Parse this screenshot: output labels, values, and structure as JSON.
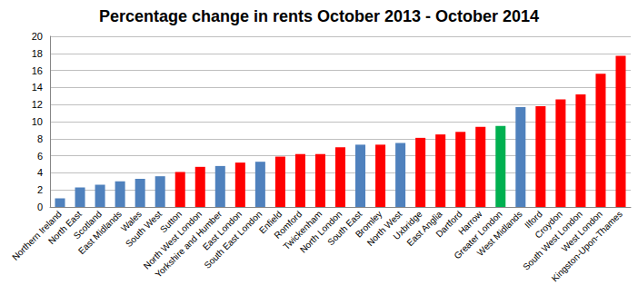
{
  "chart_data": {
    "type": "bar",
    "title": "Percentage change in rents October 2013 - October 2014",
    "categories": [
      "Northern Ireland",
      "North East",
      "Scotland",
      "East Midlands",
      "Wales",
      "South West",
      "Sutton",
      "North West London",
      "Yorkshire and Humber",
      "East London",
      "South East London",
      "Enfield",
      "Romford",
      "Twickenham",
      "North London",
      "South East",
      "Bromley",
      "North West",
      "Uxbridge",
      "East Anglia",
      "Dartford",
      "Harrow",
      "Greater London",
      "West Midlands",
      "Ilford",
      "Croydon",
      "South West London",
      "West London",
      "Kingston-Upon-Thames"
    ],
    "values": [
      1.0,
      2.3,
      2.6,
      3.0,
      3.3,
      3.6,
      4.1,
      4.7,
      4.8,
      5.2,
      5.3,
      5.9,
      6.2,
      6.2,
      7.0,
      7.3,
      7.3,
      7.5,
      8.1,
      8.5,
      8.8,
      9.4,
      9.5,
      11.7,
      11.8,
      12.6,
      13.2,
      15.6,
      17.7
    ],
    "colors": [
      "#4f81bd",
      "#4f81bd",
      "#4f81bd",
      "#4f81bd",
      "#4f81bd",
      "#4f81bd",
      "#ff0000",
      "#ff0000",
      "#4f81bd",
      "#ff0000",
      "#4f81bd",
      "#ff0000",
      "#ff0000",
      "#ff0000",
      "#ff0000",
      "#4f81bd",
      "#ff0000",
      "#4f81bd",
      "#ff0000",
      "#ff0000",
      "#ff0000",
      "#ff0000",
      "#00b050",
      "#4f81bd",
      "#ff0000",
      "#ff0000",
      "#ff0000",
      "#ff0000",
      "#ff0000"
    ],
    "ylim": [
      0,
      20
    ],
    "yticks": [
      0,
      2,
      4,
      6,
      8,
      10,
      12,
      14,
      16,
      18,
      20
    ],
    "grid": true
  }
}
